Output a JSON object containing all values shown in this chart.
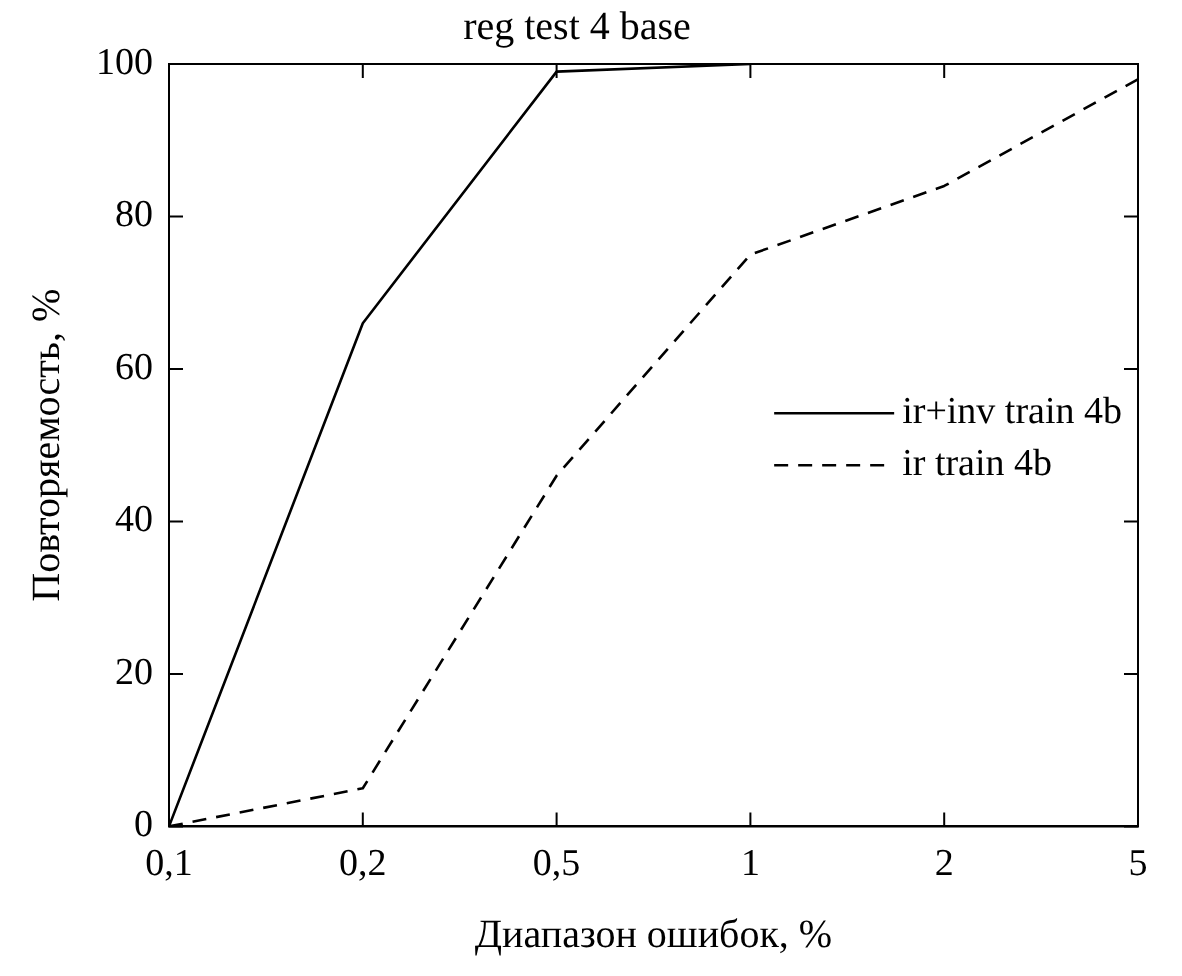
{
  "chart_data": {
    "type": "line",
    "title": "reg test 4 base",
    "xlabel": "Диапазон ошибок, %",
    "ylabel": "Повторяемость, %",
    "categories": [
      "0,1",
      "0,2",
      "0,5",
      "1",
      "2",
      "5"
    ],
    "series": [
      {
        "name": "ir+inv train 4b",
        "color": "#000000",
        "values": [
          0,
          66,
          99,
          100,
          null,
          null
        ],
        "line_style": "solid"
      },
      {
        "name": "ir train 4b",
        "color": "#000000",
        "values": [
          0,
          5,
          46,
          75,
          84,
          98
        ],
        "line_style": "dashed"
      }
    ],
    "ylim": [
      0,
      100
    ],
    "yticks": [
      0,
      20,
      40,
      60,
      80,
      100
    ],
    "grid": false,
    "legend": "right",
    "marker": "none"
  }
}
